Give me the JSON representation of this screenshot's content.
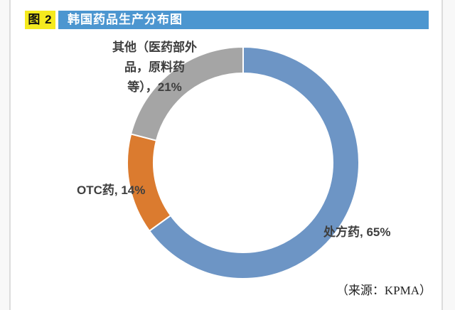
{
  "header": {
    "figure_badge": "图 2",
    "title": "韩国药品生产分布图",
    "badge_color": "#F5EA1E",
    "banner_color": "#4C96D0"
  },
  "chart_data": {
    "type": "pie",
    "subtype": "donut",
    "title": "韩国药品生产分布图",
    "categories": [
      "处方药",
      "OTC药",
      "其他（医药部外品，原料药等）"
    ],
    "values": [
      65,
      14,
      21
    ],
    "unit": "%",
    "start_angle_deg": 0,
    "direction": "clockwise",
    "inner_radius_ratio": 0.77,
    "legend": "none",
    "labels_position": "outside",
    "segments": [
      {
        "id": "rx",
        "label": "处方药",
        "value": 65,
        "color": "#6D95C5"
      },
      {
        "id": "otc",
        "label": "OTC药",
        "value": 14,
        "color": "#DB7B2F"
      },
      {
        "id": "other",
        "label": "其他（医药部外品，原料药等）",
        "value": 21,
        "color": "#A5A5A5"
      }
    ],
    "slice_labels": {
      "rx": "处方药, 65%",
      "otc": "OTC药, 14%",
      "other": "其他（医药部外\n品，原料药\n等），21%"
    }
  },
  "source": "（来源：KPMA）"
}
